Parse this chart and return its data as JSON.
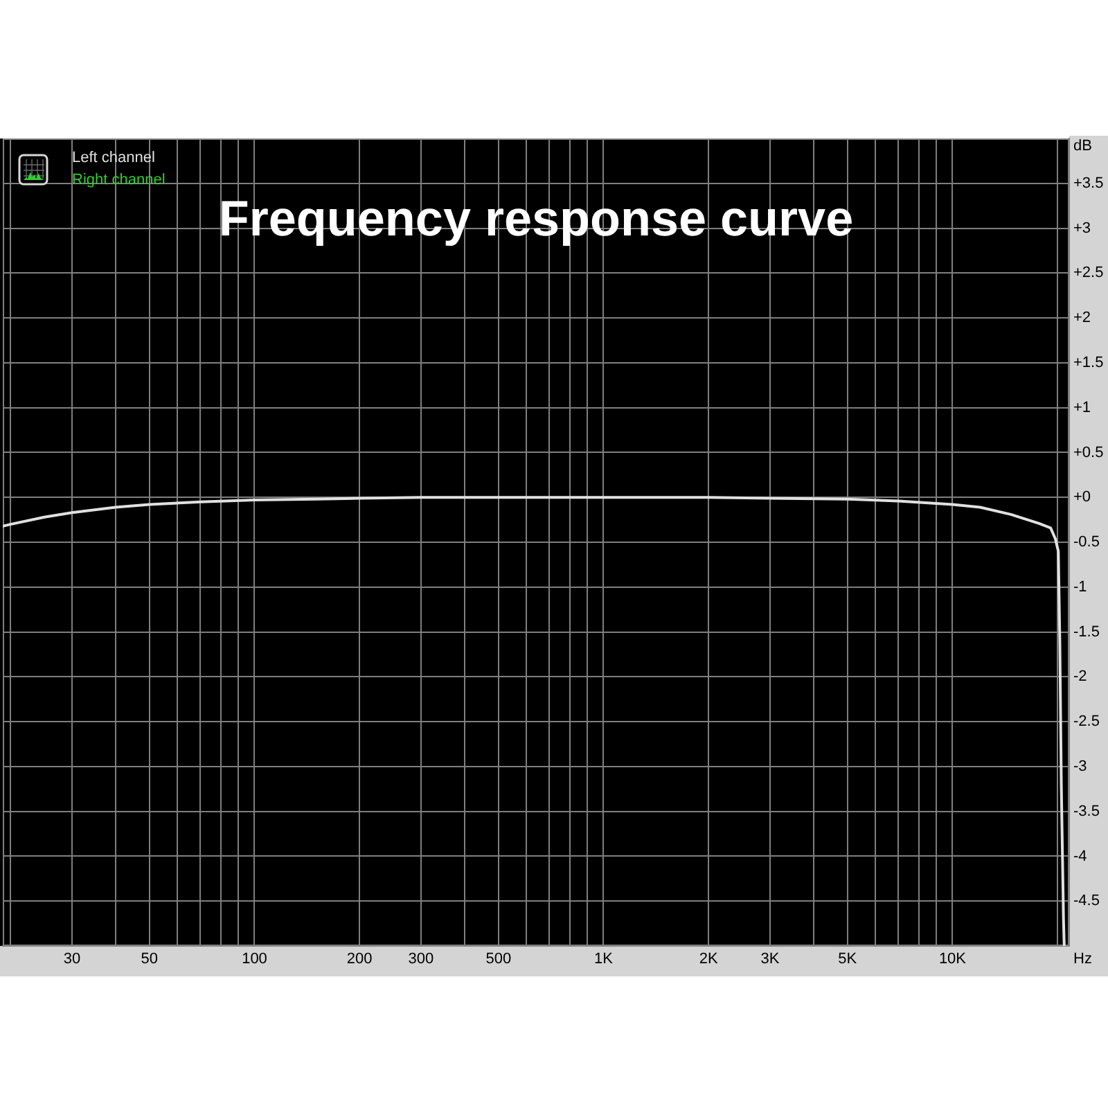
{
  "chart_data": {
    "type": "line",
    "title": "Frequency response curve",
    "xlabel": "Hz",
    "ylabel": "dB",
    "x": [
      19,
      20,
      25,
      30,
      40,
      50,
      70,
      100,
      150,
      200,
      300,
      500,
      1000,
      2000,
      3000,
      5000,
      7000,
      10000,
      12000,
      14700,
      17700,
      19100,
      19700,
      20100,
      20300,
      20500,
      20800,
      20900
    ],
    "series": [
      {
        "name": "Left channel",
        "color": "#e0e0e0",
        "values": [
          -0.32,
          -0.3,
          -0.22,
          -0.17,
          -0.11,
          -0.08,
          -0.05,
          -0.03,
          -0.02,
          -0.01,
          0,
          0,
          0,
          0,
          -0.01,
          -0.02,
          -0.04,
          -0.08,
          -0.11,
          -0.19,
          -0.29,
          -0.34,
          -0.46,
          -0.6,
          -1.6,
          -3.2,
          -4.7,
          -5
        ]
      },
      {
        "name": "Right channel",
        "color": "#33cc33",
        "values": [
          null,
          null,
          null,
          null,
          null,
          null,
          null,
          null,
          null,
          null,
          null,
          null,
          null,
          null,
          null,
          null,
          null,
          null,
          null,
          null,
          null,
          null,
          null,
          null,
          null,
          null,
          null,
          null
        ]
      }
    ],
    "xlim": [
      19,
      21600
    ],
    "ylim": [
      -5,
      4
    ],
    "xticks": [
      {
        "value": 20,
        "label": null
      },
      30,
      {
        "value": 40,
        "label": null
      },
      50,
      {
        "value": 60,
        "label": null
      },
      {
        "value": 70,
        "label": null
      },
      {
        "value": 80,
        "label": null
      },
      {
        "value": 90,
        "label": null
      },
      100,
      200,
      300,
      {
        "value": 400,
        "label": null
      },
      500,
      {
        "value": 600,
        "label": null
      },
      {
        "value": 700,
        "label": null
      },
      {
        "value": 800,
        "label": null
      },
      {
        "value": 900,
        "label": null
      },
      {
        "value": 1000,
        "label": "1K"
      },
      {
        "value": 2000,
        "label": "2K"
      },
      {
        "value": 3000,
        "label": "3K"
      },
      {
        "value": 4000,
        "label": null
      },
      {
        "value": 5000,
        "label": "5K"
      },
      {
        "value": 6000,
        "label": null
      },
      {
        "value": 7000,
        "label": null
      },
      {
        "value": 8000,
        "label": null
      },
      {
        "value": 9000,
        "label": null
      },
      {
        "value": 10000,
        "label": "10K"
      },
      {
        "value": 20000,
        "label": null
      }
    ],
    "yticks": [
      -4.5,
      -4,
      -3.5,
      -3,
      -2.5,
      -2,
      -1.5,
      -1,
      -0.5,
      {
        "value": 0,
        "label": "+0"
      },
      {
        "value": 0.5,
        "label": "+0.5"
      },
      {
        "value": 1,
        "label": "+1"
      },
      {
        "value": 1.5,
        "label": "+1.5"
      },
      {
        "value": 2,
        "label": "+2"
      },
      {
        "value": 2.5,
        "label": "+2.5"
      },
      {
        "value": 3,
        "label": "+3"
      },
      {
        "value": 3.5,
        "label": "+3.5"
      }
    ],
    "log": "x",
    "grid": true,
    "legend": "top left"
  }
}
